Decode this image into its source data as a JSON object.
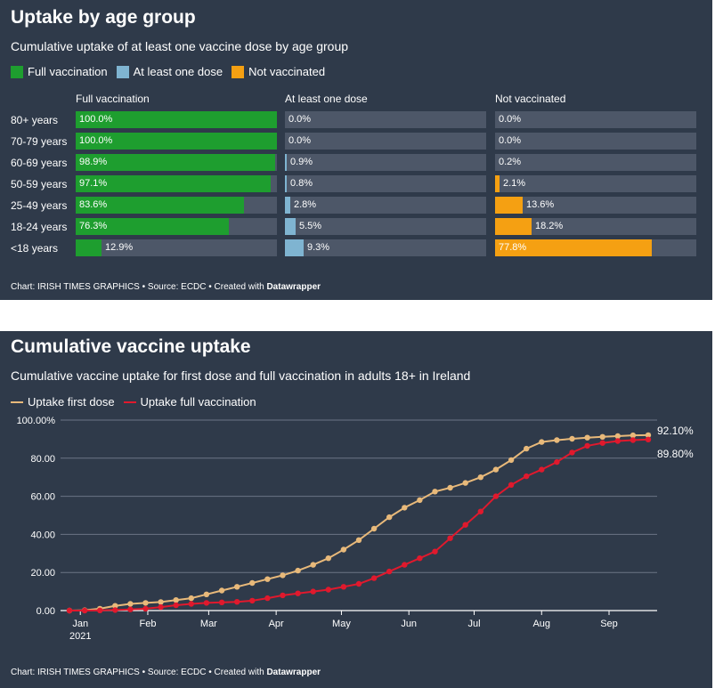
{
  "panel1": {
    "title": "Uptake by age group",
    "subtitle": "Cumulative uptake of at least one vaccine dose by age group",
    "footer_prefix": "Chart: IRISH TIMES GRAPHICS • Source: ECDC • Created with ",
    "footer_brand": "Datawrapper"
  },
  "panel2": {
    "title": "Cumulative vaccine uptake",
    "subtitle": "Cumulative vaccine uptake for first dose and full vaccination in adults 18+ in Ireland",
    "footer_prefix": "Chart: IRISH TIMES GRAPHICS • Source: ECDC • Created with ",
    "footer_brand": "Datawrapper"
  },
  "chart_data": [
    {
      "type": "bar",
      "stacking": "split columns",
      "title": "Uptake by age group",
      "subtitle": "Cumulative uptake of at least one vaccine dose by age group",
      "legend_position": "top-left",
      "categories": [
        "80+ years",
        "70-79 years",
        "60-69 years",
        "50-59 years",
        "25-49 years",
        "18-24 years",
        "<18 years"
      ],
      "series": [
        {
          "name": "Full vaccination",
          "color": "#1e9e2f",
          "values": [
            100.0,
            100.0,
            98.9,
            97.1,
            83.6,
            76.3,
            12.9
          ],
          "labels": [
            "100.0%",
            "100.0%",
            "98.9%",
            "97.1%",
            "83.6%",
            "76.3%",
            "12.9%"
          ]
        },
        {
          "name": "At least one dose",
          "color": "#7fb4d1",
          "values": [
            0.0,
            0.0,
            0.9,
            0.8,
            2.8,
            5.5,
            9.3
          ],
          "labels": [
            "0.0%",
            "0.0%",
            "0.9%",
            "0.8%",
            "2.8%",
            "5.5%",
            "9.3%"
          ]
        },
        {
          "name": "Not vaccinated",
          "color": "#f5a012",
          "values": [
            0.0,
            0.0,
            0.2,
            2.1,
            13.6,
            18.2,
            77.8
          ],
          "labels": [
            "0.0%",
            "0.0%",
            "0.2%",
            "2.1%",
            "13.6%",
            "18.2%",
            "77.8%"
          ]
        }
      ],
      "ylim": [
        0,
        100
      ]
    },
    {
      "type": "line",
      "title": "Cumulative vaccine uptake",
      "subtitle": "Cumulative vaccine uptake for first dose and full vaccination in adults 18+ in Ireland",
      "legend_position": "top-left",
      "grid": true,
      "ylim": [
        0,
        100
      ],
      "yticks": [
        0,
        20,
        40,
        60,
        80,
        100
      ],
      "ytick_labels": [
        "0.00",
        "20.00",
        "40.00",
        "60.00",
        "80.00",
        "100.00%"
      ],
      "x": [
        "2020-12-27",
        "2021-01-03",
        "2021-01-10",
        "2021-01-17",
        "2021-01-24",
        "2021-01-31",
        "2021-02-07",
        "2021-02-14",
        "2021-02-21",
        "2021-02-28",
        "2021-03-07",
        "2021-03-14",
        "2021-03-21",
        "2021-03-28",
        "2021-04-04",
        "2021-04-11",
        "2021-04-18",
        "2021-04-25",
        "2021-05-02",
        "2021-05-09",
        "2021-05-16",
        "2021-05-23",
        "2021-05-30",
        "2021-06-06",
        "2021-06-13",
        "2021-06-20",
        "2021-06-27",
        "2021-07-04",
        "2021-07-11",
        "2021-07-18",
        "2021-07-25",
        "2021-08-01",
        "2021-08-08",
        "2021-08-15",
        "2021-08-22",
        "2021-08-29",
        "2021-09-05",
        "2021-09-12",
        "2021-09-19"
      ],
      "xticks": [
        "2021-01-01",
        "2021-02-01",
        "2021-03-01",
        "2021-04-01",
        "2021-05-01",
        "2021-06-01",
        "2021-07-01",
        "2021-08-01",
        "2021-09-01"
      ],
      "xtick_labels": [
        "Jan",
        "Feb",
        "Mar",
        "Apr",
        "May",
        "Jun",
        "Jul",
        "Aug",
        "Sep"
      ],
      "xtick_year": "2021",
      "series": [
        {
          "name": "Uptake first dose",
          "color": "#e8b97a",
          "end_label": "92.10%",
          "values": [
            0.0,
            0.2,
            1.0,
            2.5,
            3.5,
            4.0,
            4.5,
            5.5,
            6.5,
            8.5,
            10.5,
            12.5,
            14.5,
            16.5,
            18.5,
            21.0,
            24.0,
            27.5,
            32.0,
            37.0,
            43.0,
            49.0,
            54.0,
            58.0,
            62.5,
            64.5,
            67.0,
            70.0,
            74.0,
            79.0,
            85.0,
            88.5,
            89.5,
            90.2,
            90.8,
            91.2,
            91.6,
            92.0,
            92.1
          ]
        },
        {
          "name": "Uptake full vaccination",
          "color": "#e0192d",
          "end_label": "89.80%",
          "values": [
            0.0,
            0.0,
            0.1,
            0.3,
            0.6,
            1.0,
            1.8,
            2.8,
            3.5,
            4.0,
            4.3,
            4.6,
            5.2,
            6.5,
            8.0,
            9.0,
            10.0,
            11.0,
            12.5,
            14.0,
            17.0,
            20.5,
            24.0,
            27.5,
            31.0,
            38.0,
            45.0,
            52.0,
            60.0,
            66.0,
            70.5,
            74.0,
            78.0,
            83.0,
            86.5,
            88.0,
            89.0,
            89.5,
            89.8
          ]
        }
      ]
    }
  ]
}
